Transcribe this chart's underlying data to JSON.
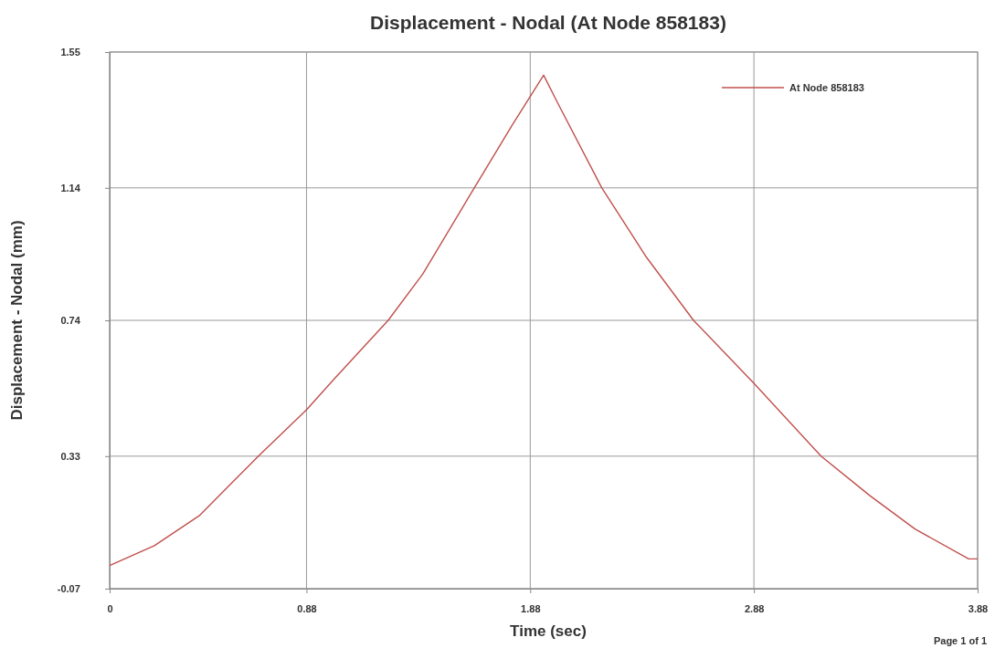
{
  "chart_data": {
    "type": "line",
    "title": "Displacement - Nodal (At Node 858183)",
    "xlabel": "Time (sec)",
    "ylabel": "Displacement - Nodal (mm)",
    "x": [
      0,
      0.2,
      0.4,
      0.665,
      0.88,
      1.0,
      1.245,
      1.4,
      1.63,
      1.8,
      1.94,
      2.0,
      2.2,
      2.4,
      2.61,
      2.88,
      3.18,
      3.4,
      3.6,
      3.84,
      3.88
    ],
    "series": [
      {
        "name": "At Node 858183",
        "color": "#c0504d",
        "values": [
          0.0,
          0.06,
          0.15,
          0.33,
          0.47,
          0.56,
          0.74,
          0.88,
          1.14,
          1.33,
          1.48,
          1.4,
          1.14,
          0.93,
          0.74,
          0.55,
          0.33,
          0.21,
          0.11,
          0.02,
          0.02
        ]
      }
    ],
    "xlim": [
      0,
      3.88
    ],
    "xticks": [
      0,
      0.88,
      1.88,
      2.88,
      3.88
    ],
    "ylim": [
      -0.07,
      1.55
    ],
    "yticks": [
      -0.07,
      0.33,
      0.74,
      1.14,
      1.55
    ],
    "grid": true,
    "legend": "top right",
    "marker": "none",
    "line_style": "solid",
    "annotations": [
      "Page 1 of 1"
    ]
  }
}
